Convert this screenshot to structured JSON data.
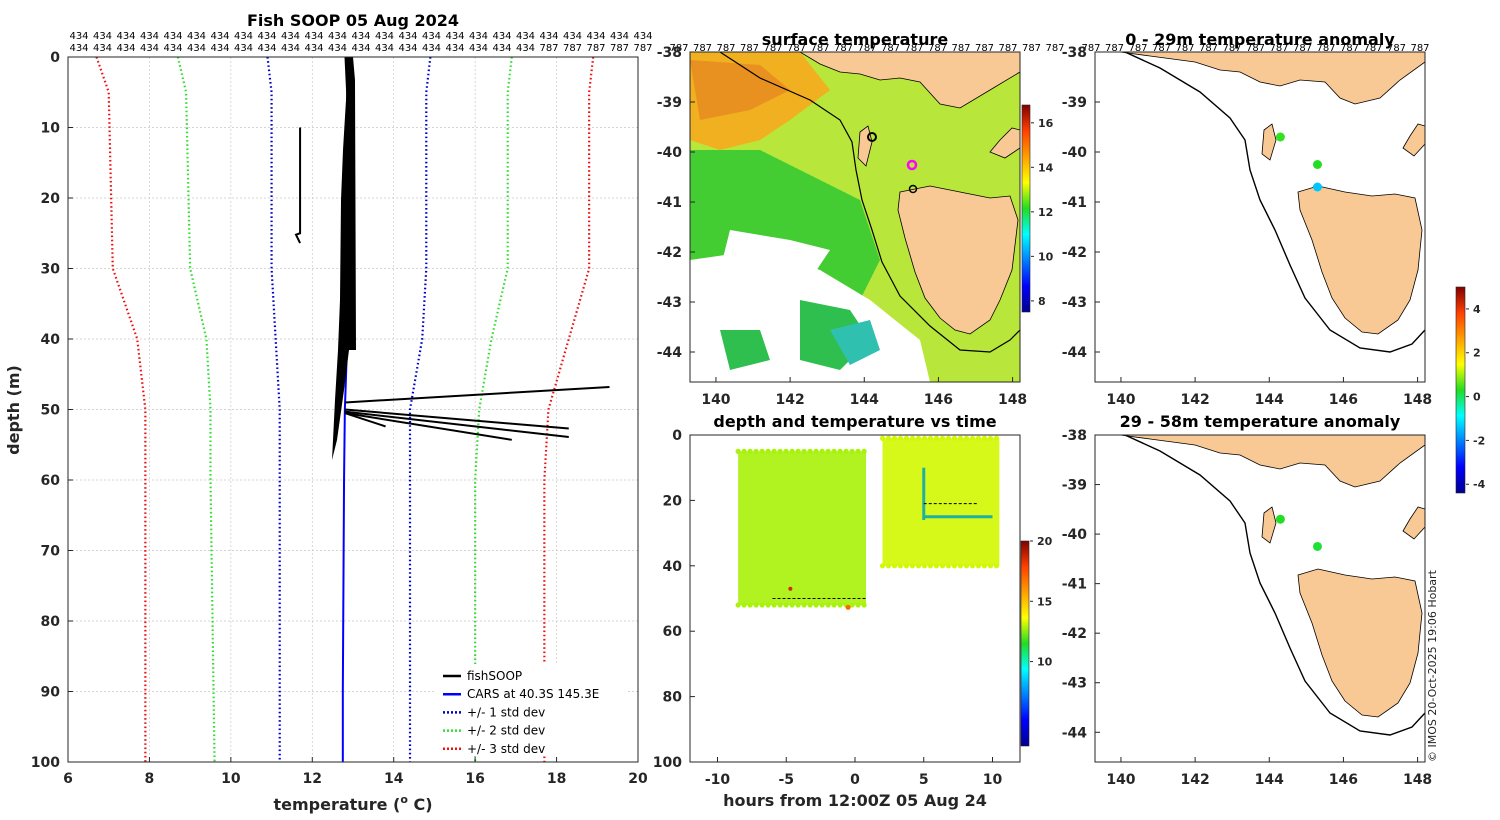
{
  "colors": {
    "land": "#f9c995",
    "profile": "#000000",
    "cars": "#0000ff",
    "std1": "#0000cc",
    "std2": "#33dd33",
    "std3": "#ee1111",
    "grid": "#c8c8c8"
  },
  "copyright": "© IMOS 20-Oct-2025 19:06 Hobart",
  "chart_data": [
    {
      "id": "profile",
      "type": "line",
      "title": "Fish SOOP 05 Aug 2024",
      "xlabel": "temperature (",
      "xlabel_sup": "o",
      "xlabel_end": " C)",
      "ylabel": "depth (m)",
      "xlim": [
        6,
        20
      ],
      "ylim": [
        0,
        100
      ],
      "y_reversed": true,
      "xticks": [
        6,
        8,
        10,
        12,
        14,
        16,
        18,
        20
      ],
      "yticks": [
        0,
        10,
        20,
        30,
        40,
        50,
        60,
        70,
        80,
        90,
        100
      ],
      "grid": true,
      "top_labels": {
        "row1": [
          "434",
          "434",
          "434",
          "434",
          "434",
          "434",
          "434",
          "434",
          "434",
          "434",
          "434",
          "434",
          "434",
          "434",
          "434",
          "434",
          "434",
          "434",
          "434",
          "434",
          "434",
          "434",
          "434",
          "434",
          "434"
        ],
        "row2": [
          "434",
          "434",
          "434",
          "434",
          "434",
          "434",
          "434",
          "434",
          "434",
          "434",
          "434",
          "434",
          "434",
          "434",
          "434",
          "434",
          "434",
          "434",
          "434",
          "434",
          "787",
          "787",
          "787",
          "787",
          "787"
        ]
      },
      "legend": {
        "placement": "bottom-right",
        "items": [
          {
            "label": "fishSOOP",
            "style": "solid",
            "color": "#000000"
          },
          {
            "label": "CARS at 40.3S 145.3E",
            "style": "solid",
            "color": "#0000ff"
          },
          {
            "label": "+/- 1 std dev",
            "style": "dotted",
            "color": "#0000cc"
          },
          {
            "label": "+/- 2 std dev",
            "style": "dotted",
            "color": "#33dd33"
          },
          {
            "label": "+/- 3 std dev",
            "style": "dotted",
            "color": "#ee1111"
          }
        ]
      },
      "series": [
        {
          "name": "CARS mean",
          "color": "#0000ff",
          "style": "solid",
          "points": [
            [
              12.9,
              0
            ],
            [
              12.9,
              5
            ],
            [
              12.9,
              10
            ],
            [
              12.9,
              20
            ],
            [
              12.88,
              30
            ],
            [
              12.86,
              40
            ],
            [
              12.83,
              45
            ],
            [
              12.8,
              50
            ],
            [
              12.78,
              60
            ],
            [
              12.77,
              70
            ],
            [
              12.76,
              80
            ],
            [
              12.75,
              90
            ],
            [
              12.75,
              100
            ]
          ]
        },
        {
          "name": "-1 std",
          "color": "#0000cc",
          "style": "dotted",
          "points": [
            [
              10.9,
              0
            ],
            [
              11.0,
              5
            ],
            [
              11.0,
              30
            ],
            [
              11.1,
              40
            ],
            [
              11.2,
              50
            ],
            [
              11.2,
              60
            ],
            [
              11.2,
              100
            ]
          ]
        },
        {
          "name": "+1 std",
          "color": "#0000cc",
          "style": "dotted",
          "points": [
            [
              14.9,
              0
            ],
            [
              14.8,
              5
            ],
            [
              14.8,
              30
            ],
            [
              14.7,
              40
            ],
            [
              14.4,
              50
            ],
            [
              14.4,
              60
            ],
            [
              14.4,
              100
            ]
          ]
        },
        {
          "name": "-2 std",
          "color": "#33dd33",
          "style": "dotted",
          "points": [
            [
              8.7,
              0
            ],
            [
              8.9,
              5
            ],
            [
              9.0,
              30
            ],
            [
              9.4,
              40
            ],
            [
              9.5,
              50
            ],
            [
              9.5,
              60
            ],
            [
              9.6,
              100
            ]
          ]
        },
        {
          "name": "+2 std",
          "color": "#33dd33",
          "style": "dotted",
          "points": [
            [
              16.9,
              0
            ],
            [
              16.8,
              5
            ],
            [
              16.8,
              30
            ],
            [
              16.4,
              40
            ],
            [
              16.1,
              50
            ],
            [
              16.0,
              60
            ],
            [
              16.0,
              100
            ]
          ]
        },
        {
          "name": "-3 std",
          "color": "#ee1111",
          "style": "dotted",
          "points": [
            [
              6.7,
              0
            ],
            [
              7.0,
              5
            ],
            [
              7.1,
              30
            ],
            [
              7.7,
              40
            ],
            [
              7.9,
              50
            ],
            [
              7.9,
              60
            ],
            [
              7.9,
              100
            ]
          ]
        },
        {
          "name": "+3 std",
          "color": "#ee1111",
          "style": "dotted",
          "points": [
            [
              18.9,
              0
            ],
            [
              18.8,
              5
            ],
            [
              18.8,
              30
            ],
            [
              18.3,
              40
            ],
            [
              17.8,
              50
            ],
            [
              17.7,
              60
            ],
            [
              17.7,
              100
            ]
          ]
        },
        {
          "name": "fishSOOP spike 1",
          "color": "#000000",
          "style": "solid",
          "points": [
            [
              12.8,
              49
            ],
            [
              19.3,
              46.8
            ]
          ]
        },
        {
          "name": "fishSOOP spike 2",
          "color": "#000000",
          "style": "solid",
          "points": [
            [
              12.8,
              50
            ],
            [
              18.3,
              52.7
            ]
          ]
        },
        {
          "name": "fishSOOP spike 3",
          "color": "#000000",
          "style": "solid",
          "points": [
            [
              12.8,
              50.3
            ],
            [
              18.3,
              53.9
            ]
          ]
        },
        {
          "name": "fishSOOP spike 4",
          "color": "#000000",
          "style": "solid",
          "points": [
            [
              12.8,
              50.5
            ],
            [
              16.9,
              54.3
            ]
          ]
        },
        {
          "name": "fishSOOP spike 5",
          "color": "#000000",
          "style": "solid",
          "points": [
            [
              12.8,
              50.5
            ],
            [
              13.8,
              52.4
            ]
          ]
        },
        {
          "name": "fishSOOP isolated",
          "color": "#000000",
          "style": "solid",
          "points": [
            [
              11.7,
              10
            ],
            [
              11.7,
              25
            ],
            [
              11.6,
              25.2
            ],
            [
              11.7,
              26.4
            ]
          ]
        }
      ]
    },
    {
      "id": "sst_map",
      "type": "heatmap",
      "title": "surface temperature",
      "top_labels": [
        "787",
        "787",
        "787",
        "787",
        "787",
        "787",
        "787",
        "787",
        "787",
        "787",
        "787",
        "787",
        "787",
        "787",
        "787",
        "787",
        "787"
      ],
      "xlim": [
        139.3,
        148.2
      ],
      "ylim": [
        -44.6,
        -38
      ],
      "xticks": [
        140,
        142,
        144,
        146,
        148
      ],
      "yticks": [
        -38,
        -39,
        -40,
        -41,
        -42,
        -43,
        -44
      ],
      "colorbar": {
        "min": 7.5,
        "max": 16.8,
        "ticks": [
          8,
          10,
          12,
          14,
          16
        ]
      }
    },
    {
      "id": "depth_time",
      "type": "scatter",
      "title": "depth and temperature vs time",
      "xlabel": "hours from 12:00Z 05 Aug 24",
      "xlim": [
        -12,
        12
      ],
      "ylim": [
        0,
        100
      ],
      "y_reversed": true,
      "xticks": [
        -10,
        -5,
        0,
        5,
        10
      ],
      "yticks": [
        0,
        20,
        40,
        60,
        80,
        100
      ],
      "colorbar": {
        "min": 3,
        "max": 20,
        "ticks": [
          10,
          15,
          20
        ]
      },
      "blocks": [
        {
          "t_start": -8.5,
          "t_end": 0.8,
          "depth_top": 5,
          "depth_bottom": 52,
          "temp": 12.8
        },
        {
          "t_start": 2.0,
          "t_end": 10.5,
          "depth_top": 1,
          "depth_bottom": 40,
          "temp": 13.2
        }
      ]
    },
    {
      "id": "anom_shallow",
      "type": "scatter",
      "title": "0 - 29m temperature anomaly",
      "top_labels": [
        "787",
        "787",
        "787",
        "787",
        "787",
        "787",
        "787",
        "787",
        "787",
        "787",
        "787",
        "787",
        "787",
        "787",
        "787"
      ],
      "xlim": [
        139.3,
        148.2
      ],
      "ylim": [
        -44.6,
        -38
      ],
      "xticks": [
        140,
        142,
        144,
        146,
        148
      ],
      "yticks": [
        -38,
        -39,
        -40,
        -41,
        -42,
        -43,
        -44
      ],
      "points": [
        {
          "lon": 144.3,
          "lat": -39.7,
          "anomaly": 0.4
        },
        {
          "lon": 145.3,
          "lat": -40.25,
          "anomaly": 0.3
        },
        {
          "lon": 145.3,
          "lat": -40.7,
          "anomaly": -1.4
        }
      ]
    },
    {
      "id": "anom_deep",
      "type": "scatter",
      "title": "29 - 58m temperature anomaly",
      "xlim": [
        139.3,
        148.2
      ],
      "ylim": [
        -44.6,
        -38
      ],
      "xticks": [
        140,
        142,
        144,
        146,
        148
      ],
      "yticks": [
        -38,
        -39,
        -40,
        -41,
        -42,
        -43,
        -44
      ],
      "points": [
        {
          "lon": 144.3,
          "lat": -39.7,
          "anomaly": 0.3
        },
        {
          "lon": 145.3,
          "lat": -40.25,
          "anomaly": 0.2
        }
      ],
      "colorbar": {
        "min": -4.4,
        "max": 5,
        "ticks": [
          -4,
          -2,
          0,
          2,
          4
        ]
      }
    }
  ]
}
